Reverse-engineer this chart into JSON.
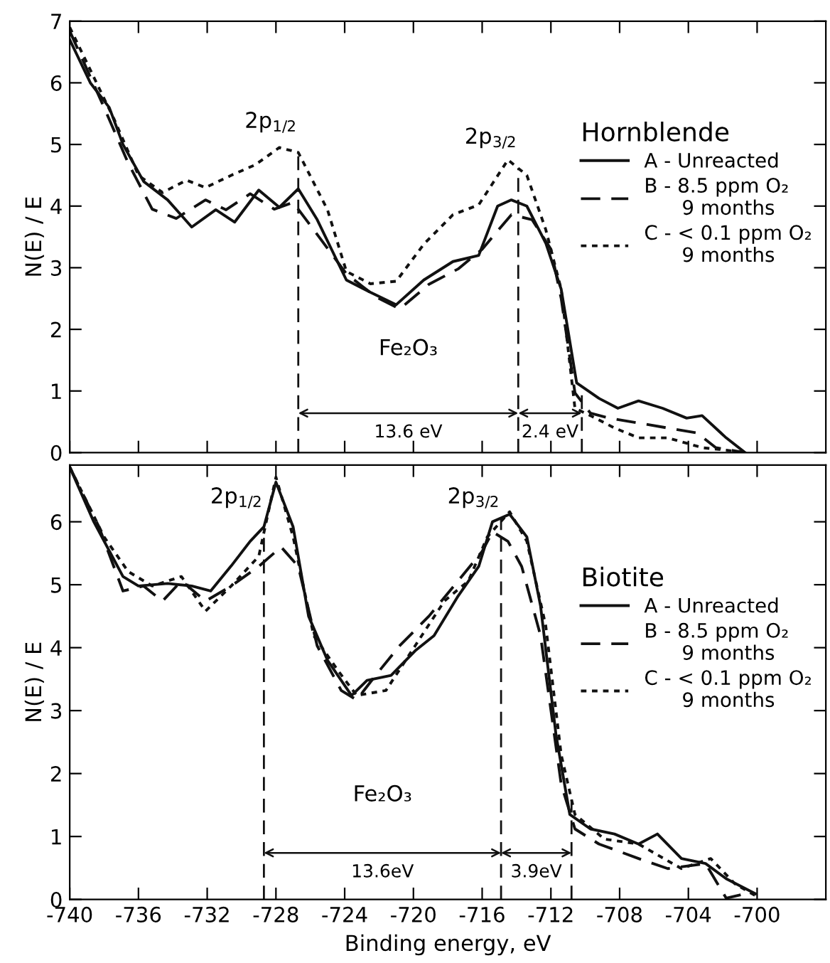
{
  "chart_data": [
    {
      "type": "line",
      "ylabel": "N(E) / E",
      "legend_title": "Hornblende",
      "legend": "right",
      "tick_labels": "y",
      "xlim": [
        -740,
        -696
      ],
      "xticks": [
        -740,
        -736,
        -732,
        -728,
        -724,
        -720,
        -716,
        -712,
        -708,
        -704,
        -700
      ],
      "ylim": [
        0,
        7
      ],
      "yticks": [
        0,
        1,
        2,
        3,
        4,
        5,
        6,
        7
      ],
      "series": [
        {
          "name": "A - Unreacted",
          "color": "#111111",
          "line_style": "solid",
          "x": [
            -740.0,
            -738.8,
            -737.7,
            -736.9,
            -735.7,
            -734.3,
            -732.9,
            -731.5,
            -730.4,
            -729.0,
            -727.8,
            -726.7,
            -725.6,
            -723.9,
            -722.5,
            -721.0,
            -719.4,
            -717.7,
            -716.2,
            -715.1,
            -714.3,
            -713.4,
            -712.3,
            -711.4,
            -710.5,
            -709.2,
            -708.1,
            -706.9,
            -705.5,
            -704.1,
            -703.2,
            -701.8,
            -700.7
          ],
          "values": [
            6.7,
            6.0,
            5.6,
            5.0,
            4.4,
            4.1,
            3.66,
            3.94,
            3.74,
            4.26,
            3.98,
            4.28,
            3.78,
            2.8,
            2.6,
            2.4,
            2.8,
            3.1,
            3.2,
            4.0,
            4.1,
            4.0,
            3.4,
            2.65,
            1.13,
            0.88,
            0.72,
            0.84,
            0.72,
            0.56,
            0.6,
            0.24,
            0.0
          ]
        },
        {
          "name": "B - 8.5 ppm O₂\n      9 months",
          "color": "#111111",
          "line_style": "dashed",
          "x": [
            -740.0,
            -738.0,
            -736.6,
            -735.2,
            -733.8,
            -732.1,
            -730.9,
            -729.5,
            -728.1,
            -727.0,
            -725.6,
            -723.9,
            -722.2,
            -720.8,
            -719.1,
            -717.4,
            -716.0,
            -714.3,
            -713.1,
            -712.0,
            -711.4,
            -710.6,
            -709.7,
            -708.6,
            -706.9,
            -705.2,
            -703.5,
            -702.4,
            -700.7
          ],
          "values": [
            6.84,
            5.6,
            4.7,
            3.95,
            3.8,
            4.1,
            3.94,
            4.2,
            3.95,
            4.06,
            3.54,
            2.9,
            2.53,
            2.33,
            2.73,
            2.98,
            3.3,
            3.86,
            3.78,
            3.3,
            2.5,
            0.97,
            0.64,
            0.56,
            0.48,
            0.4,
            0.32,
            0.08,
            0.0
          ]
        },
        {
          "name": "C - < 0.1 ppm O₂\n      9 months",
          "color": "#111111",
          "line_style": "dotted",
          "x": [
            -740.0,
            -737.4,
            -736.0,
            -734.6,
            -733.2,
            -732.1,
            -730.6,
            -729.2,
            -727.8,
            -726.7,
            -725.0,
            -723.9,
            -722.5,
            -721.0,
            -719.4,
            -717.7,
            -716.2,
            -714.5,
            -713.4,
            -712.3,
            -711.4,
            -710.6,
            -709.7,
            -708.3,
            -706.9,
            -705.2,
            -703.2,
            -701.8,
            -700.7
          ],
          "values": [
            6.9,
            5.4,
            4.5,
            4.22,
            4.42,
            4.3,
            4.5,
            4.67,
            4.95,
            4.87,
            3.94,
            2.94,
            2.74,
            2.78,
            3.38,
            3.86,
            4.02,
            4.75,
            4.5,
            3.62,
            2.65,
            0.72,
            0.6,
            0.4,
            0.24,
            0.24,
            0.08,
            0.04,
            0.0
          ]
        }
      ],
      "ref_lines": [
        {
          "axis": "x",
          "value": -726.7,
          "line_style": "dashed",
          "color": "#111111"
        },
        {
          "axis": "x",
          "value": -713.9,
          "line_style": "dashed",
          "color": "#111111"
        },
        {
          "axis": "x",
          "value": -710.2,
          "line_style": "dashed",
          "color": "#111111"
        }
      ],
      "annotations": [
        "2p$_{1/2}$",
        "2p$_{3/2}$",
        "Fe₂O₃",
        "13.6 eV",
        {
          "text": "2.4 eV",
          "x": -710.2,
          "y": 0.64
        }
      ]
    },
    {
      "type": "line",
      "xlabel": "Binding energy, eV",
      "ylabel": "N(E) / E",
      "legend_title": "Biotite",
      "legend": "right",
      "xlim": [
        -740,
        -696
      ],
      "xticks": [
        -740,
        -736,
        -732,
        -728,
        -724,
        -720,
        -716,
        -712,
        -708,
        -704,
        -700
      ],
      "ylim": [
        0,
        6.9
      ],
      "yticks": [
        0,
        1,
        2,
        3,
        4,
        5,
        6
      ],
      "series": [
        {
          "name": "A - Unreacted",
          "color": "#111111",
          "line_style": "solid",
          "x": [
            -740.0,
            -738.6,
            -736.9,
            -736.0,
            -734.3,
            -732.9,
            -731.8,
            -730.6,
            -729.5,
            -728.7,
            -728.0,
            -727.0,
            -726.1,
            -725.0,
            -723.6,
            -722.7,
            -721.3,
            -719.9,
            -718.8,
            -717.4,
            -716.2,
            -715.4,
            -714.4,
            -713.4,
            -712.6,
            -711.7,
            -710.9,
            -709.7,
            -708.3,
            -706.9,
            -705.8,
            -704.4,
            -703.0,
            -701.8,
            -700.1
          ],
          "values": [
            6.87,
            6.0,
            5.13,
            4.98,
            5.02,
            4.98,
            4.9,
            5.3,
            5.69,
            5.92,
            6.63,
            5.92,
            4.5,
            3.8,
            3.24,
            3.48,
            3.56,
            3.95,
            4.19,
            4.82,
            5.29,
            6.0,
            6.12,
            5.76,
            4.66,
            2.61,
            1.35,
            1.12,
            1.04,
            0.88,
            1.04,
            0.65,
            0.57,
            0.33,
            0.09
          ]
        },
        {
          "name": "B - 8.5 ppm O₂\n      9 months",
          "color": "#111111",
          "line_style": "dashed",
          "x": [
            -740.0,
            -738.3,
            -736.9,
            -735.7,
            -734.6,
            -733.5,
            -732.1,
            -730.6,
            -729.0,
            -727.7,
            -726.7,
            -725.6,
            -724.2,
            -723.3,
            -722.2,
            -720.8,
            -719.1,
            -717.4,
            -716.0,
            -715.4,
            -714.5,
            -713.7,
            -712.6,
            -711.4,
            -710.6,
            -709.2,
            -706.9,
            -705.2,
            -703.0,
            -701.8,
            -700.7
          ],
          "values": [
            6.87,
            5.92,
            4.9,
            4.98,
            4.74,
            5.06,
            4.74,
            4.98,
            5.29,
            5.6,
            5.29,
            4.03,
            3.32,
            3.17,
            3.56,
            4.03,
            4.5,
            5.06,
            5.53,
            5.84,
            5.69,
            5.29,
            4.19,
            1.83,
            1.12,
            0.88,
            0.65,
            0.49,
            0.57,
            0.02,
            0.09
          ]
        },
        {
          "name": "C - < 0.1 ppm O₂\n      9 months",
          "color": "#111111",
          "line_style": "dotted",
          "x": [
            -740.0,
            -738.0,
            -736.6,
            -735.2,
            -733.5,
            -732.1,
            -730.6,
            -729.0,
            -728.0,
            -727.0,
            -725.8,
            -724.4,
            -723.3,
            -721.6,
            -719.9,
            -718.2,
            -716.8,
            -715.7,
            -714.4,
            -713.4,
            -712.3,
            -711.4,
            -710.6,
            -708.9,
            -706.9,
            -704.4,
            -702.7,
            -701.3,
            -700.1
          ],
          "values": [
            6.87,
            5.76,
            5.21,
            4.98,
            5.13,
            4.58,
            4.98,
            5.45,
            6.71,
            5.76,
            4.19,
            3.64,
            3.24,
            3.32,
            4.03,
            4.74,
            5.06,
            5.76,
            6.16,
            5.69,
            4.35,
            2.3,
            1.35,
            0.96,
            0.88,
            0.49,
            0.65,
            0.25,
            0.06
          ]
        }
      ],
      "ref_lines": [
        {
          "axis": "x",
          "value": -728.7,
          "line_style": "dashed",
          "color": "#111111"
        },
        {
          "axis": "x",
          "value": -714.9,
          "line_style": "dashed",
          "color": "#111111"
        },
        {
          "axis": "x",
          "value": -710.8,
          "line_style": "dashed",
          "color": "#111111"
        }
      ],
      "annotations": [
        "2p$_{1/2}$",
        "2p$_{3/2}$",
        "Fe₂O₃",
        "13.6eV",
        {
          "text": "3.9eV",
          "x": -710.8,
          "y": 0.74
        }
      ]
    }
  ]
}
